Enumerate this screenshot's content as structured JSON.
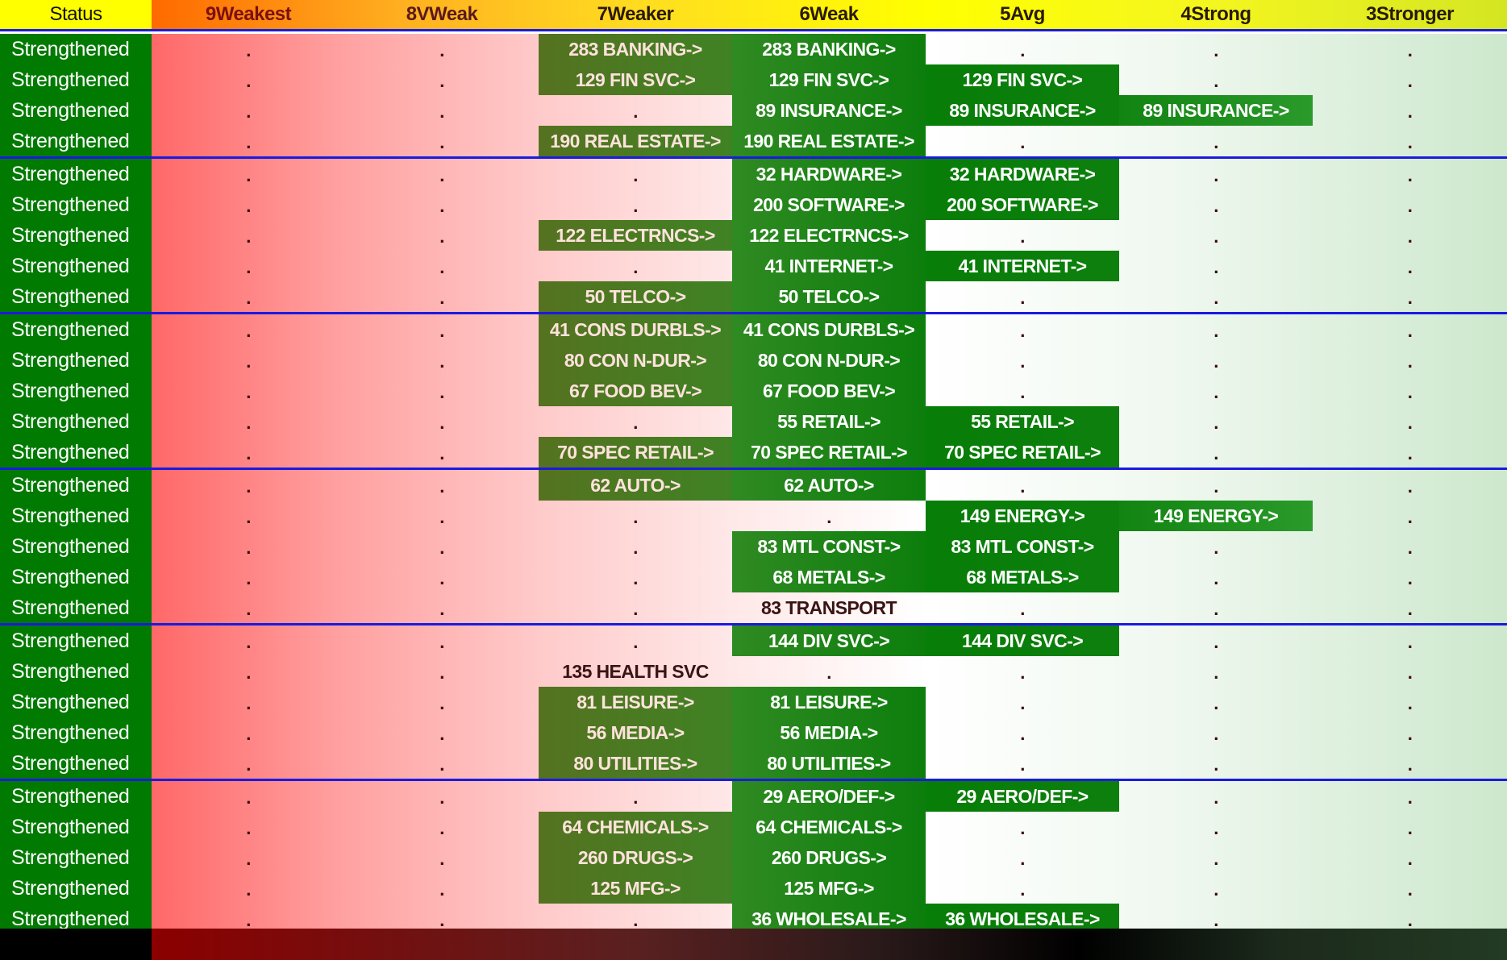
{
  "header": {
    "columns": [
      "Status",
      "9Weakest",
      "8VWeak",
      "7Weaker",
      "6Weak",
      "5Avg",
      "4Strong",
      "3Stronger"
    ]
  },
  "colors": {
    "status_bg": "#007a00",
    "group_separator": "#1a1ae0",
    "filled_cell": "#0c7e0c"
  },
  "groups": [
    {
      "rows": [
        {
          "status": "Strengthened",
          "cells": [
            ".",
            ".",
            "283 BANKING->",
            "283 BANKING->",
            ".",
            ".",
            "."
          ]
        },
        {
          "status": "Strengthened",
          "cells": [
            ".",
            ".",
            "129 FIN SVC->",
            "129 FIN SVC->",
            "129 FIN SVC->",
            ".",
            "."
          ]
        },
        {
          "status": "Strengthened",
          "cells": [
            ".",
            ".",
            ".",
            "89 INSURANCE->",
            "89 INSURANCE->",
            "89 INSURANCE->",
            "."
          ]
        },
        {
          "status": "Strengthened",
          "cells": [
            ".",
            ".",
            "190 REAL ESTATE->",
            "190 REAL ESTATE->",
            ".",
            ".",
            "."
          ]
        }
      ]
    },
    {
      "rows": [
        {
          "status": "Strengthened",
          "cells": [
            ".",
            ".",
            ".",
            "32 HARDWARE->",
            "32 HARDWARE->",
            ".",
            "."
          ]
        },
        {
          "status": "Strengthened",
          "cells": [
            ".",
            ".",
            ".",
            "200 SOFTWARE->",
            "200 SOFTWARE->",
            ".",
            "."
          ]
        },
        {
          "status": "Strengthened",
          "cells": [
            ".",
            ".",
            "122 ELECTRNCS->",
            "122 ELECTRNCS->",
            ".",
            ".",
            "."
          ]
        },
        {
          "status": "Strengthened",
          "cells": [
            ".",
            ".",
            ".",
            "41 INTERNET->",
            "41 INTERNET->",
            ".",
            "."
          ]
        },
        {
          "status": "Strengthened",
          "cells": [
            ".",
            ".",
            "50 TELCO->",
            "50 TELCO->",
            ".",
            ".",
            "."
          ]
        }
      ]
    },
    {
      "rows": [
        {
          "status": "Strengthened",
          "cells": [
            ".",
            ".",
            "41 CONS DURBLS->",
            "41 CONS DURBLS->",
            ".",
            ".",
            "."
          ]
        },
        {
          "status": "Strengthened",
          "cells": [
            ".",
            ".",
            "80 CON N-DUR->",
            "80 CON N-DUR->",
            ".",
            ".",
            "."
          ]
        },
        {
          "status": "Strengthened",
          "cells": [
            ".",
            ".",
            "67 FOOD BEV->",
            "67 FOOD BEV->",
            ".",
            ".",
            "."
          ]
        },
        {
          "status": "Strengthened",
          "cells": [
            ".",
            ".",
            ".",
            "55 RETAIL->",
            "55 RETAIL->",
            ".",
            "."
          ]
        },
        {
          "status": "Strengthened",
          "cells": [
            ".",
            ".",
            "70 SPEC RETAIL->",
            "70 SPEC RETAIL->",
            "70 SPEC RETAIL->",
            ".",
            "."
          ]
        }
      ]
    },
    {
      "rows": [
        {
          "status": "Strengthened",
          "cells": [
            ".",
            ".",
            "62 AUTO->",
            "62 AUTO->",
            ".",
            ".",
            "."
          ]
        },
        {
          "status": "Strengthened",
          "cells": [
            ".",
            ".",
            ".",
            ".",
            "149 ENERGY->",
            "149 ENERGY->",
            "."
          ]
        },
        {
          "status": "Strengthened",
          "cells": [
            ".",
            ".",
            ".",
            "83 MTL CONST->",
            "83 MTL CONST->",
            ".",
            "."
          ]
        },
        {
          "status": "Strengthened",
          "cells": [
            ".",
            ".",
            ".",
            "68 METALS->",
            "68 METALS->",
            ".",
            "."
          ]
        },
        {
          "status": "Strengthened",
          "cells": [
            ".",
            ".",
            ".",
            "83 TRANSPORT",
            ".",
            ".",
            "."
          ]
        }
      ]
    },
    {
      "rows": [
        {
          "status": "Strengthened",
          "cells": [
            ".",
            ".",
            ".",
            "144 DIV SVC->",
            "144 DIV SVC->",
            ".",
            "."
          ]
        },
        {
          "status": "Strengthened",
          "cells": [
            ".",
            ".",
            "135 HEALTH SVC",
            ".",
            ".",
            ".",
            "."
          ]
        },
        {
          "status": "Strengthened",
          "cells": [
            ".",
            ".",
            "81 LEISURE->",
            "81 LEISURE->",
            ".",
            ".",
            "."
          ]
        },
        {
          "status": "Strengthened",
          "cells": [
            ".",
            ".",
            "56 MEDIA->",
            "56 MEDIA->",
            ".",
            ".",
            "."
          ]
        },
        {
          "status": "Strengthened",
          "cells": [
            ".",
            ".",
            "80 UTILITIES->",
            "80 UTILITIES->",
            ".",
            ".",
            "."
          ]
        }
      ]
    },
    {
      "rows": [
        {
          "status": "Strengthened",
          "cells": [
            ".",
            ".",
            ".",
            "29 AERO/DEF->",
            "29 AERO/DEF->",
            ".",
            "."
          ]
        },
        {
          "status": "Strengthened",
          "cells": [
            ".",
            ".",
            "64 CHEMICALS->",
            "64 CHEMICALS->",
            ".",
            ".",
            "."
          ]
        },
        {
          "status": "Strengthened",
          "cells": [
            ".",
            ".",
            "260 DRUGS->",
            "260 DRUGS->",
            ".",
            ".",
            "."
          ]
        },
        {
          "status": "Strengthened",
          "cells": [
            ".",
            ".",
            "125 MFG->",
            "125 MFG->",
            ".",
            ".",
            "."
          ]
        },
        {
          "status": "Strengthened",
          "cells": [
            ".",
            ".",
            ".",
            "36 WHOLESALE->",
            "36 WHOLESALE->",
            ".",
            "."
          ]
        }
      ]
    }
  ]
}
